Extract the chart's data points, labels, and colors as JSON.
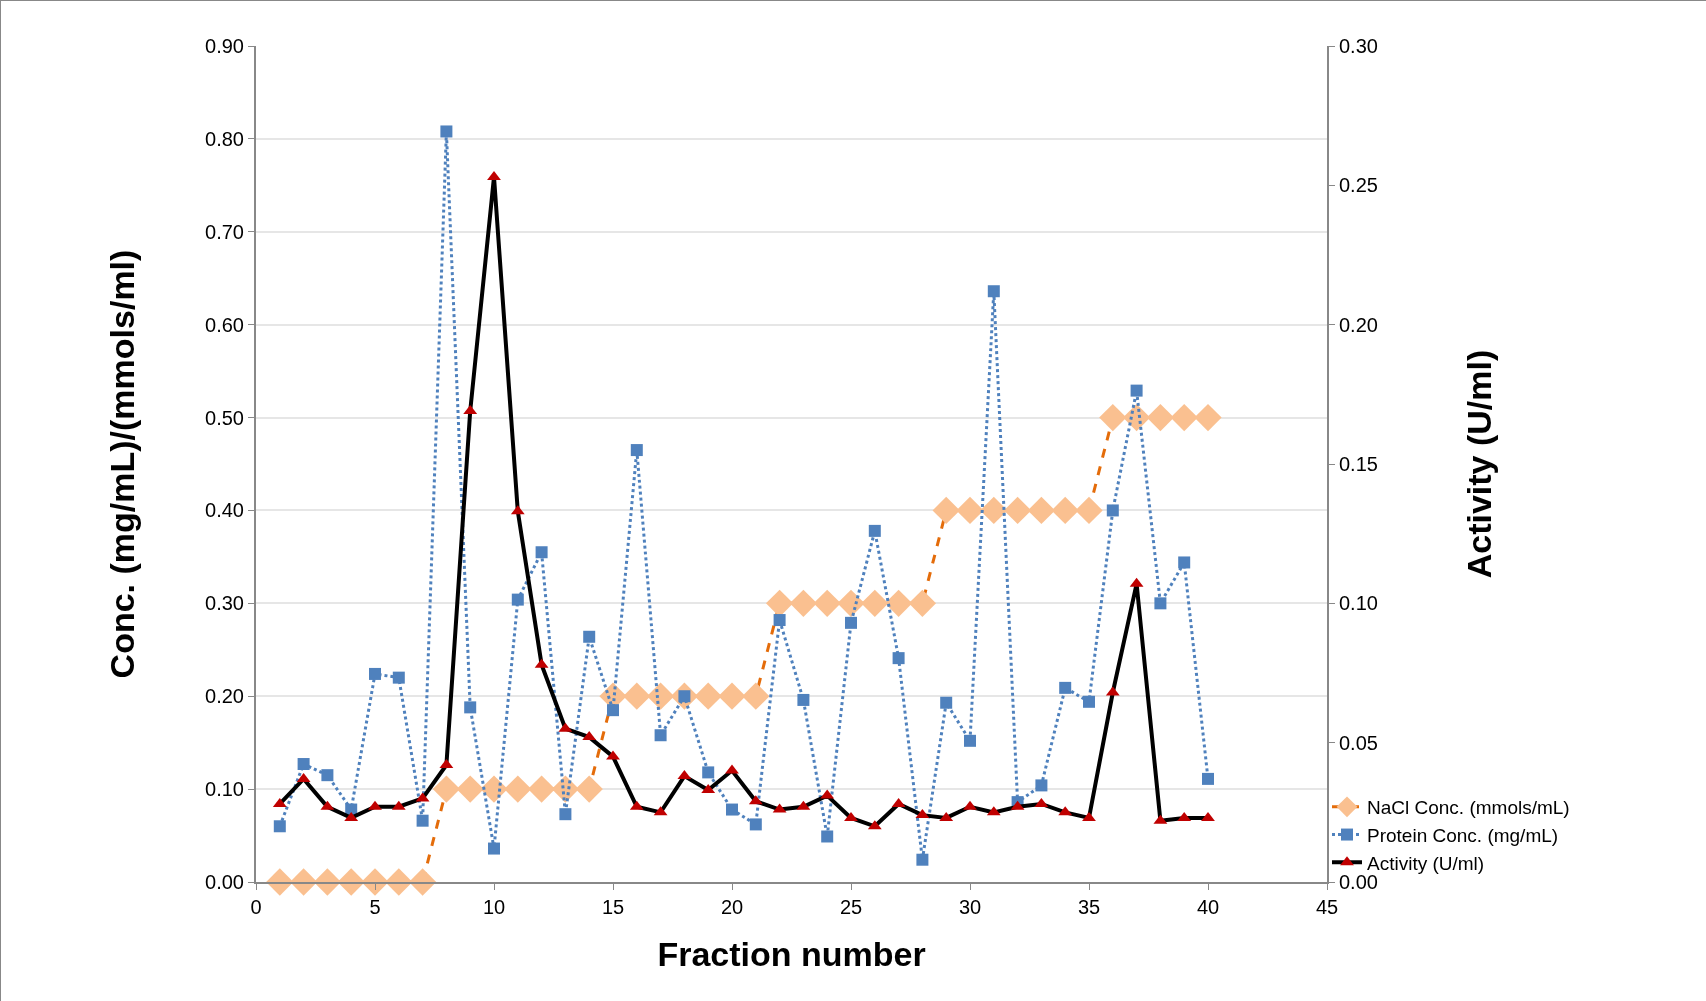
{
  "chart_data": {
    "type": "line",
    "xlabel": "Fraction number",
    "ylabel": "Conc. (mg/mL)/(mmols/ml)",
    "y2label": "Activity (U/ml)",
    "x": [
      1,
      2,
      3,
      4,
      5,
      6,
      7,
      8,
      9,
      10,
      11,
      12,
      13,
      14,
      15,
      16,
      17,
      18,
      19,
      20,
      21,
      22,
      23,
      24,
      25,
      26,
      27,
      28,
      29,
      30,
      31,
      32,
      33,
      34,
      35,
      36,
      37,
      38,
      39,
      40
    ],
    "series": [
      {
        "name": "NaCl Conc. (mmols/mL)",
        "color": "#e46c0a",
        "marker": "diamond",
        "line_style": "dashed",
        "values": [
          0,
          0,
          0,
          0,
          0,
          0,
          0,
          0.1,
          0.1,
          0.1,
          0.1,
          0.1,
          0.1,
          0.1,
          0.2,
          0.2,
          0.2,
          0.2,
          0.2,
          0.2,
          0.2,
          0.3,
          0.3,
          0.3,
          0.3,
          0.3,
          0.3,
          0.3,
          0.4,
          0.4,
          0.4,
          0.4,
          0.4,
          0.4,
          0.4,
          0.5,
          0.5,
          0.5,
          0.5,
          0.5
        ],
        "colors": [
          "#fac090",
          "#fac090",
          "#fac090",
          "#fac090",
          "#fac090",
          "#fac090",
          "#fac090",
          "#fac090",
          "#fac090",
          "#fac090",
          "#fac090",
          "#fac090",
          "#fac090",
          "#fac090",
          "#fac090",
          "#fac090",
          "#fac090",
          "#fac090",
          "#fac090",
          "#fac090",
          "#fac090",
          "#fac090",
          "#fac090",
          "#fac090",
          "#fac090",
          "#fac090",
          "#fac090",
          "#fac090",
          "#fac090",
          "#fac090",
          "#fac090",
          "#fac090",
          "#fac090",
          "#fac090",
          "#fac090",
          "#fac090",
          "#fac090",
          "#fac090",
          "#fac090",
          "#fac090"
        ]
      },
      {
        "name": "Protein Conc. (mg/mL)",
        "color": "#4f81bd",
        "marker": "square",
        "line_style": "dotted",
        "values": [
          0.06,
          0.127,
          0.115,
          0.078,
          0.224,
          0.22,
          0.066,
          0.808,
          0.188,
          0.036,
          0.304,
          0.355,
          0.073,
          0.264,
          0.185,
          0.465,
          0.158,
          0.2,
          0.118,
          0.078,
          0.062,
          0.282,
          0.196,
          0.049,
          0.279,
          0.378,
          0.241,
          0.024,
          0.193,
          0.152,
          0.636,
          0.086,
          0.104,
          0.209,
          0.194,
          0.4,
          0.529,
          0.3,
          0.344,
          0.111
        ]
      },
      {
        "name": "Activity (U/ml)",
        "color": "#000000",
        "marker": "triangle",
        "line_style": "solid",
        "axis": "y2",
        "values": [
          0.028,
          0.037,
          0.027,
          0.023,
          0.027,
          0.027,
          0.03,
          0.042,
          0.169,
          0.253,
          0.133,
          0.078,
          0.055,
          0.052,
          0.045,
          0.027,
          0.025,
          0.038,
          0.033,
          0.04,
          0.029,
          0.026,
          0.027,
          0.031,
          0.023,
          0.02,
          0.028,
          0.024,
          0.023,
          0.027,
          0.025,
          0.027,
          0.028,
          0.025,
          0.023,
          0.068,
          0.107,
          0.022,
          0.023,
          0.023
        ],
        "colors": [
          "#c00000",
          "#c00000",
          "#c00000",
          "#c00000",
          "#c00000",
          "#c00000",
          "#c00000",
          "#c00000",
          "#c00000",
          "#c00000",
          "#c00000",
          "#c00000",
          "#c00000",
          "#c00000",
          "#c00000",
          "#c00000",
          "#c00000",
          "#c00000",
          "#c00000",
          "#c00000",
          "#c00000",
          "#c00000",
          "#c00000",
          "#c00000",
          "#c00000",
          "#c00000",
          "#c00000",
          "#c00000",
          "#c00000",
          "#c00000",
          "#c00000",
          "#c00000",
          "#c00000",
          "#c00000",
          "#c00000",
          "#c00000",
          "#c00000",
          "#c00000",
          "#c00000",
          "#c00000"
        ]
      }
    ],
    "xlim": [
      0,
      45
    ],
    "xticks": [
      0,
      5,
      10,
      15,
      20,
      25,
      30,
      35,
      40,
      45
    ],
    "ylim": [
      0,
      0.9
    ],
    "yticks": [
      {
        "value": 0,
        "label": "0.00"
      },
      {
        "value": 0.1,
        "label": "0.10"
      },
      {
        "value": 0.2,
        "label": "0.20"
      },
      {
        "value": 0.3,
        "label": "0.30"
      },
      {
        "value": 0.4,
        "label": "0.40"
      },
      {
        "value": 0.5,
        "label": "0.50"
      },
      {
        "value": 0.6,
        "label": "0.60"
      },
      {
        "value": 0.7,
        "label": "0.70"
      },
      {
        "value": 0.8,
        "label": "0.80"
      },
      {
        "value": 0.9,
        "label": "0.90"
      }
    ],
    "y2lim": [
      0,
      0.3
    ],
    "y2ticks": [
      {
        "value": 0,
        "label": "0.00"
      },
      {
        "value": 0.05,
        "label": "0.05"
      },
      {
        "value": 0.1,
        "label": "0.10"
      },
      {
        "value": 0.15,
        "label": "0.15"
      },
      {
        "value": 0.2,
        "label": "0.20"
      },
      {
        "value": 0.25,
        "label": "0.25"
      },
      {
        "value": 0.3,
        "label": "0.30"
      }
    ],
    "grid": "y",
    "legend": "bottom right"
  }
}
